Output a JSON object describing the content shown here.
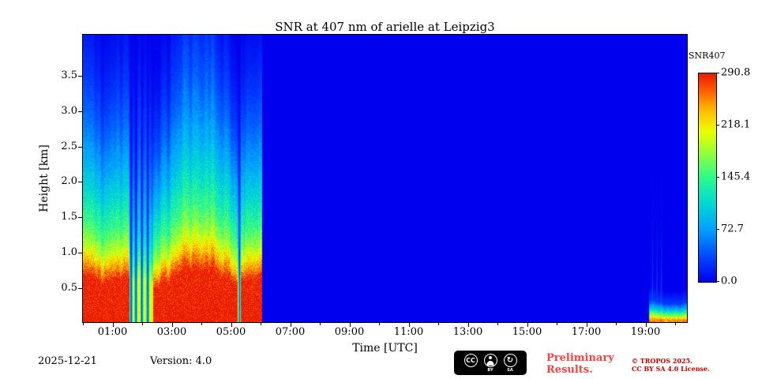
{
  "chart_data": {
    "type": "heatmap",
    "title": "SNR at 407 nm of arielle at Leipzig3",
    "xlabel": "Time [UTC]",
    "ylabel": "Height [km]",
    "x_range_hours": [
      0,
      20.4
    ],
    "y_range_km": [
      0.02,
      4.08
    ],
    "x_tick_hours": [
      1,
      3,
      5,
      7,
      9,
      11,
      13,
      15,
      17,
      19
    ],
    "x_tick_labels": [
      "01:00",
      "03:00",
      "05:00",
      "07:00",
      "09:00",
      "11:00",
      "13:00",
      "15:00",
      "17:00",
      "19:00"
    ],
    "x_minor_tick_hours": [
      0,
      2,
      4,
      6,
      8,
      10,
      12,
      14,
      16,
      18,
      20
    ],
    "y_tick_values": [
      0.5,
      1.0,
      1.5,
      2.0,
      2.5,
      3.0,
      3.5
    ],
    "y_tick_labels": [
      "0.5",
      "1.0",
      "1.5",
      "2.0",
      "2.5",
      "3.0",
      "3.5"
    ],
    "grid": false,
    "colorbar": {
      "label": "SNR407",
      "min": 0,
      "max": 290.8,
      "tick_values": [
        290.8,
        218.1,
        145.4,
        72.7,
        0.0
      ],
      "tick_labels": [
        "290.8",
        "218.1",
        "145.4",
        "72.7",
        "0.0"
      ],
      "colormap": "jet"
    },
    "colormap_stops": [
      [
        0.0,
        0,
        0,
        238
      ],
      [
        0.12,
        0,
        70,
        255
      ],
      [
        0.25,
        0,
        160,
        255
      ],
      [
        0.37,
        0,
        215,
        215
      ],
      [
        0.5,
        45,
        250,
        140
      ],
      [
        0.62,
        150,
        255,
        55
      ],
      [
        0.72,
        235,
        255,
        0
      ],
      [
        0.82,
        255,
        190,
        0
      ],
      [
        0.91,
        255,
        100,
        0
      ],
      [
        1.0,
        232,
        25,
        0
      ]
    ],
    "segments": [
      {
        "description": "strong boundary-layer lidar signal 00:00-06:00, SNR ~290 below 0.6 km decaying to 0 near 3.5-4 km, ragged top, blue drop-out streaks near 02:00 and 05:15, elevated plume 03:00-04:40",
        "t_start": 0.0,
        "t_end": 6.05,
        "profile_heights_km": [
          0,
          0.55,
          0.75,
          0.95,
          1.2,
          1.6,
          2.0,
          2.5,
          3.0,
          3.5,
          4.1
        ],
        "profile_snr": [
          295,
          290,
          238,
          188,
          150,
          110,
          78,
          48,
          26,
          11,
          2
        ],
        "cf_base": 0.82,
        "cf_var": 0.46,
        "dip": {
          "t_start": 1.55,
          "t_end": 2.35,
          "factor": 0.7
        },
        "gaps_hours": [
          1.62,
          1.78,
          1.98,
          2.18,
          5.28
        ],
        "plume": {
          "t_start": 2.9,
          "t_end": 4.7
        }
      },
      {
        "description": "no signal (daylight gap), SNR = 0",
        "t_start": 6.05,
        "t_end": 19.12,
        "profile_snr_constant": 0
      },
      {
        "description": "shallow surface signal after 19:10, SNR ~270 below 0.1 km, zero above ~0.4 km, faint vertical streaks near 19:15-19:35",
        "t_start": 19.12,
        "t_end": 20.4,
        "profile_heights_km": [
          0,
          0.06,
          0.12,
          0.2,
          0.3,
          0.5
        ],
        "profile_snr": [
          270,
          240,
          170,
          90,
          30,
          0
        ],
        "cf_base": 0.85,
        "cf_var": 0.3,
        "streaks_hours": [
          19.25,
          19.4,
          19.55
        ]
      }
    ]
  },
  "colors": {
    "preliminary_red": "#ff4040",
    "copyright_red": "#c00000",
    "axis_black": "#000000",
    "background": "#ffffff"
  },
  "footer": {
    "date": "2025-12-21",
    "version": "Version: 4.0",
    "preliminary_line1": "Preliminary",
    "preliminary_line2": "Results.",
    "copyright_line1": "© TROPOS 2025.",
    "copyright_line2": "CC BY SA 4.0 License.",
    "cc_badge": {
      "cc": "CC",
      "by": "BY",
      "sa": "SA",
      "sa_symbol": "↻"
    }
  }
}
